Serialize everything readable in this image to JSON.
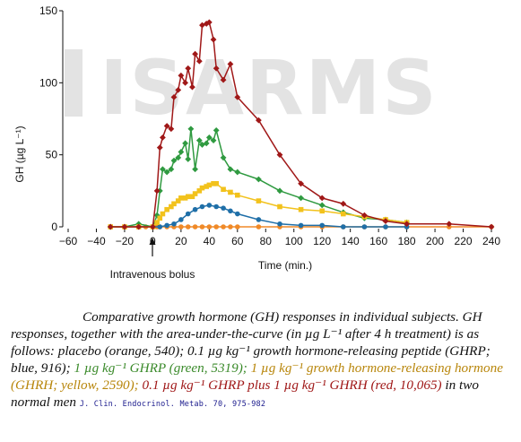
{
  "watermark": {
    "text": "ISARMS"
  },
  "chart_data": {
    "type": "line",
    "xlabel": "Time (min.)",
    "ylabel": "GH (µg L⁻¹)",
    "xlim": [
      -60,
      240
    ],
    "ylim": [
      0,
      150
    ],
    "xticks": [
      -60,
      -40,
      -20,
      0,
      20,
      40,
      60,
      80,
      100,
      120,
      140,
      160,
      180,
      200,
      220,
      240
    ],
    "xtick_labels": [
      "−60",
      "−40",
      "−20",
      "0",
      "20",
      "40",
      "60",
      "80",
      "100",
      "120",
      "140",
      "160",
      "180",
      "200",
      "220",
      "240"
    ],
    "yticks": [
      0,
      50,
      100,
      150
    ],
    "grid": false,
    "annotation": {
      "text": "Intravenous bolus",
      "x": 0
    },
    "series": [
      {
        "name": "placebo",
        "color": "#f08a28",
        "marker": "circle",
        "x": [
          -30,
          -20,
          -10,
          -5,
          0,
          3,
          5,
          10,
          15,
          20,
          25,
          30,
          35,
          40,
          45,
          50,
          55,
          60,
          75,
          90,
          105,
          120,
          135,
          150,
          165,
          180,
          210,
          240
        ],
        "y": [
          0,
          0,
          0,
          0,
          0,
          0,
          0,
          0,
          0,
          0,
          0,
          0,
          0,
          0,
          0,
          0,
          0,
          0,
          0,
          0,
          0,
          0,
          0,
          0,
          0,
          0,
          0,
          0
        ]
      },
      {
        "name": "0.1 µg kg⁻¹ GHRP",
        "color": "#1f6fa8",
        "marker": "circle",
        "x": [
          -30,
          -20,
          -10,
          0,
          5,
          10,
          15,
          20,
          25,
          30,
          35,
          40,
          45,
          50,
          55,
          60,
          75,
          90,
          105,
          120,
          135,
          150,
          165,
          180
        ],
        "y": [
          0,
          0,
          0,
          0,
          0,
          1,
          2,
          5,
          9,
          12,
          14,
          15,
          14,
          13,
          11,
          9,
          5,
          2,
          1,
          1,
          0,
          0,
          0,
          0
        ]
      },
      {
        "name": "1 µg kg⁻¹ GHRP",
        "color": "#2f9a40",
        "marker": "diamond",
        "x": [
          -30,
          -20,
          -10,
          0,
          3,
          5,
          7,
          10,
          13,
          15,
          18,
          20,
          23,
          25,
          27,
          30,
          33,
          35,
          38,
          40,
          43,
          45,
          50,
          55,
          60,
          75,
          90,
          105,
          120,
          135,
          150,
          165,
          180
        ],
        "y": [
          0,
          0,
          2,
          0,
          8,
          25,
          40,
          38,
          40,
          46,
          48,
          52,
          58,
          47,
          68,
          40,
          60,
          57,
          58,
          62,
          60,
          67,
          48,
          40,
          38,
          33,
          25,
          20,
          15,
          10,
          6,
          5,
          3
        ]
      },
      {
        "name": "1 µg kg⁻¹ GHRH",
        "color": "#f2c21c",
        "marker": "square",
        "x": [
          -30,
          -20,
          -10,
          0,
          3,
          5,
          7,
          10,
          13,
          15,
          18,
          20,
          23,
          25,
          28,
          30,
          33,
          35,
          38,
          40,
          43,
          45,
          50,
          55,
          60,
          75,
          90,
          105,
          120,
          135,
          150,
          165,
          180
        ],
        "y": [
          0,
          0,
          0,
          0,
          3,
          6,
          9,
          12,
          14,
          16,
          18,
          20,
          20,
          21,
          21,
          23,
          25,
          27,
          28,
          29,
          30,
          30,
          26,
          24,
          22,
          18,
          14,
          12,
          11,
          9,
          7,
          5,
          3
        ]
      },
      {
        "name": "0.1 µg kg⁻¹ GHRP plus 1 µg kg⁻¹ GHRH",
        "color": "#a01818",
        "marker": "diamond",
        "x": [
          -30,
          -20,
          -10,
          0,
          3,
          5,
          7,
          10,
          13,
          15,
          18,
          20,
          23,
          25,
          28,
          30,
          33,
          35,
          38,
          40,
          43,
          45,
          50,
          55,
          60,
          75,
          90,
          105,
          120,
          135,
          150,
          165,
          180,
          210,
          240
        ],
        "y": [
          0,
          0,
          0,
          0,
          25,
          55,
          62,
          70,
          68,
          90,
          95,
          105,
          100,
          110,
          97,
          120,
          115,
          140,
          141,
          142,
          130,
          110,
          102,
          113,
          90,
          74,
          50,
          30,
          20,
          16,
          8,
          4,
          2,
          2,
          0
        ]
      }
    ]
  },
  "caption": {
    "lead": "Comparative growth hormone (GH) responses in individual subjects. GH responses, together with the area-under-the-curve (in µg L⁻¹ after 4 h treatment) is as follows: placebo (orange, 540); 0.1 µg kg⁻¹ growth hormone-releasing peptide (GHRP; blue, 916);",
    "green": "1 µg kg⁻¹ GHRP (green, 5319);",
    "yellow": "1 µg kg⁻¹ growth hormone-releasing hormone (GHRH; yellow, 2590);",
    "red": "0.1 µg kg⁻¹ GHRP plus 1 µg kg⁻¹ GHRH (red, 10,065)",
    "tail": "in two normal men",
    "citation": "J. Clin. Endocrinol. Metab. 70, 975-982"
  }
}
